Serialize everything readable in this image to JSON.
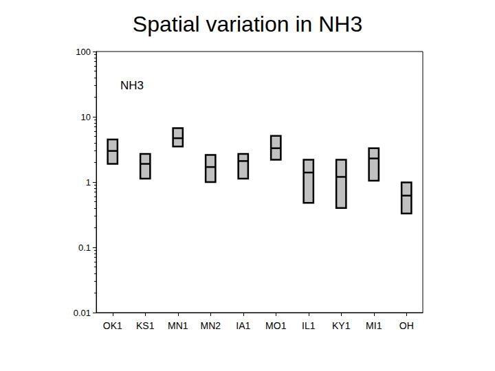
{
  "chart_data": {
    "type": "boxplot",
    "title": "Spatial variation in NH3",
    "annotation": "NH3",
    "categories": [
      "OK1",
      "KS1",
      "MN1",
      "MN2",
      "IA1",
      "MO1",
      "IL1",
      "KY1",
      "MI1",
      "OH"
    ],
    "low": [
      1.9,
      1.13,
      3.5,
      1.0,
      1.13,
      2.2,
      0.48,
      0.4,
      1.05,
      0.33
    ],
    "values": [
      3.0,
      1.9,
      4.7,
      1.7,
      2.1,
      3.3,
      1.4,
      1.2,
      2.3,
      0.62
    ],
    "high": [
      4.5,
      2.7,
      6.7,
      2.6,
      2.7,
      5.1,
      2.2,
      2.2,
      3.3,
      0.99
    ],
    "color": "#c0c0c0",
    "log": "y",
    "ylim": [
      0.01,
      100
    ],
    "yticks": [
      0.01,
      0.1,
      1,
      10,
      100
    ],
    "grid": false
  }
}
